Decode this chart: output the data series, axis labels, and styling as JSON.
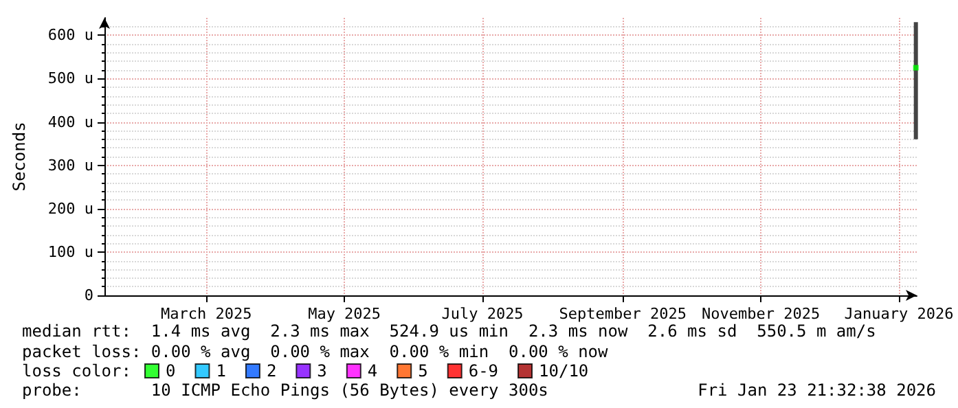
{
  "chart_data": {
    "type": "scatter",
    "ylabel": "Seconds",
    "legend_title": "loss color:",
    "legend": "bottom",
    "grid": true,
    "marker": "square",
    "xlim": [
      "2025-01-30",
      "2026-01-23T21:30"
    ],
    "xticks": [
      {
        "value": "2025-03-16",
        "label": "March 2025"
      },
      {
        "value": "2025-05-16",
        "label": "May 2025"
      },
      {
        "value": "2025-07-16",
        "label": "July 2025"
      },
      {
        "value": "2025-09-16",
        "label": "September 2025"
      },
      {
        "value": "2025-11-16",
        "label": "November 2025"
      },
      {
        "value": "2026-01-16",
        "label": "January 2026"
      }
    ],
    "ylim": [
      0,
      640
    ],
    "yticks": [
      0,
      {
        "value": 100,
        "label": "100 u"
      },
      {
        "value": 200,
        "label": "200 u"
      },
      {
        "value": 300,
        "label": "300 u"
      },
      {
        "value": 400,
        "label": "400 u"
      },
      {
        "value": 500,
        "label": "500 u"
      },
      {
        "value": 600,
        "label": "600 u"
      }
    ],
    "series": [
      {
        "type": "bar",
        "color": "#444444",
        "x": [
          "2026-01-23T12:00"
        ],
        "base": [
          360
        ],
        "values": [
          270
        ]
      },
      {
        "name": "0",
        "color": "#00ff00",
        "x": [
          "2026-01-23T12:00"
        ],
        "values": [
          525
        ]
      },
      {
        "name": "1",
        "color": "#00bbff"
      },
      {
        "name": "2",
        "color": "#0059ff"
      },
      {
        "name": "3",
        "color": "#7e00ff"
      },
      {
        "name": "4",
        "color": "#ff00ff"
      },
      {
        "name": "5",
        "color": "#ff5500"
      },
      {
        "name": "6-9",
        "color": "#ff0000"
      },
      {
        "name": "10/10",
        "color": "#a10000"
      }
    ],
    "annotations": [
      "median rtt:  1.4 ms avg  2.3 ms max  524.9 us min  2.3 ms now  2.6 ms sd  550.5 m am/s",
      "packet loss: 0.00 % avg  0.00 % max  0.00 % min  0.00 % now",
      "probe:       10 ICMP Echo Pings (56 Bytes) every 300s",
      "Fri Jan 23 21:32:38 2026"
    ]
  }
}
